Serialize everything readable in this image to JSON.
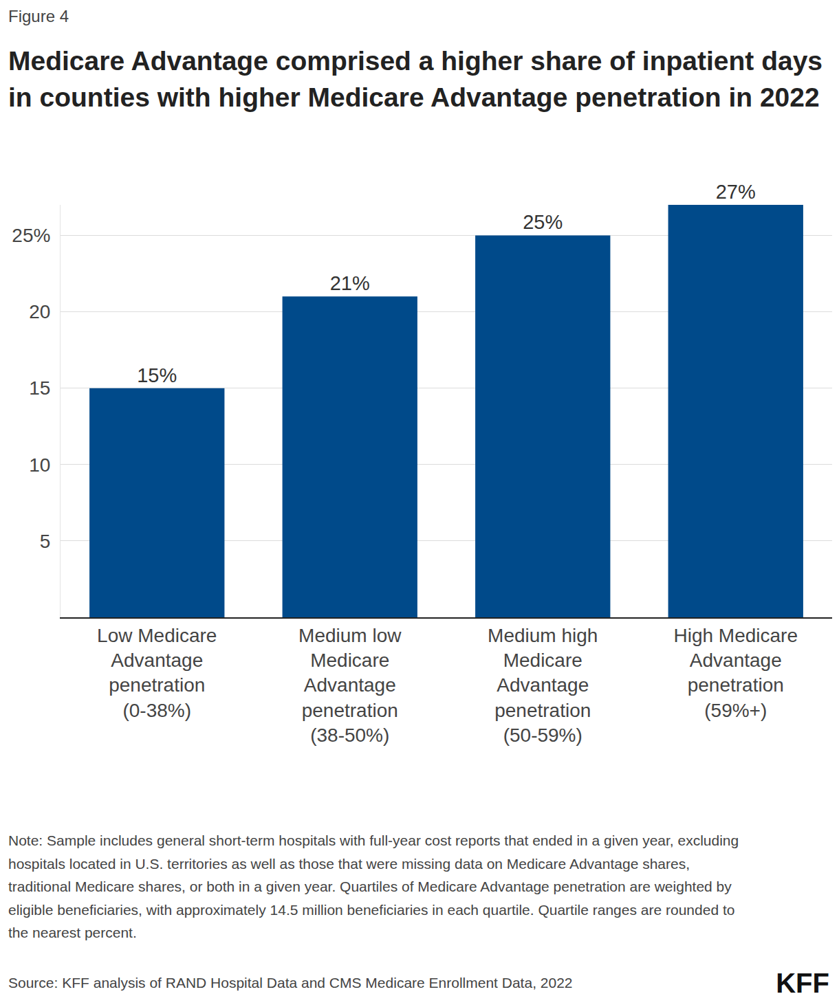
{
  "figure_label": "Figure 4",
  "note": "Note:  Sample includes general short-term hospitals with full-year cost reports that ended in a given year, excluding hospitals located in U.S. territories as well as those that were missing data on Medicare Advantage shares, traditional Medicare shares, or both in a given year. Quartiles of Medicare Advantage penetration are weighted by eligible beneficiaries, with approximately 14.5 million beneficiaries in each quartile. Quartile ranges are rounded to the nearest percent.",
  "source": "Source: KFF analysis of RAND Hospital Data and CMS Medicare Enrollment Data, 2022",
  "logo": "KFF",
  "chart_data": {
    "type": "bar",
    "title": "Medicare Advantage comprised a higher share of inpatient days in counties with higher Medicare Advantage penetration in 2022",
    "categories": [
      "Low Medicare Advantage penetration (0-38%)",
      "Medium low Medicare Advantage penetration (38-50%)",
      "Medium high Medicare Advantage penetration (50-59%)",
      "High Medicare Advantage penetration (59%+)"
    ],
    "values": [
      15,
      21,
      25,
      27
    ],
    "value_labels": [
      "15%",
      "21%",
      "25%",
      "27%"
    ],
    "data_labels": true,
    "color": "#004a8a",
    "ylim": [
      0,
      27
    ],
    "yticks": [
      5,
      10,
      15,
      20,
      {
        "value": 25,
        "label": "25%"
      }
    ],
    "grid": true
  }
}
